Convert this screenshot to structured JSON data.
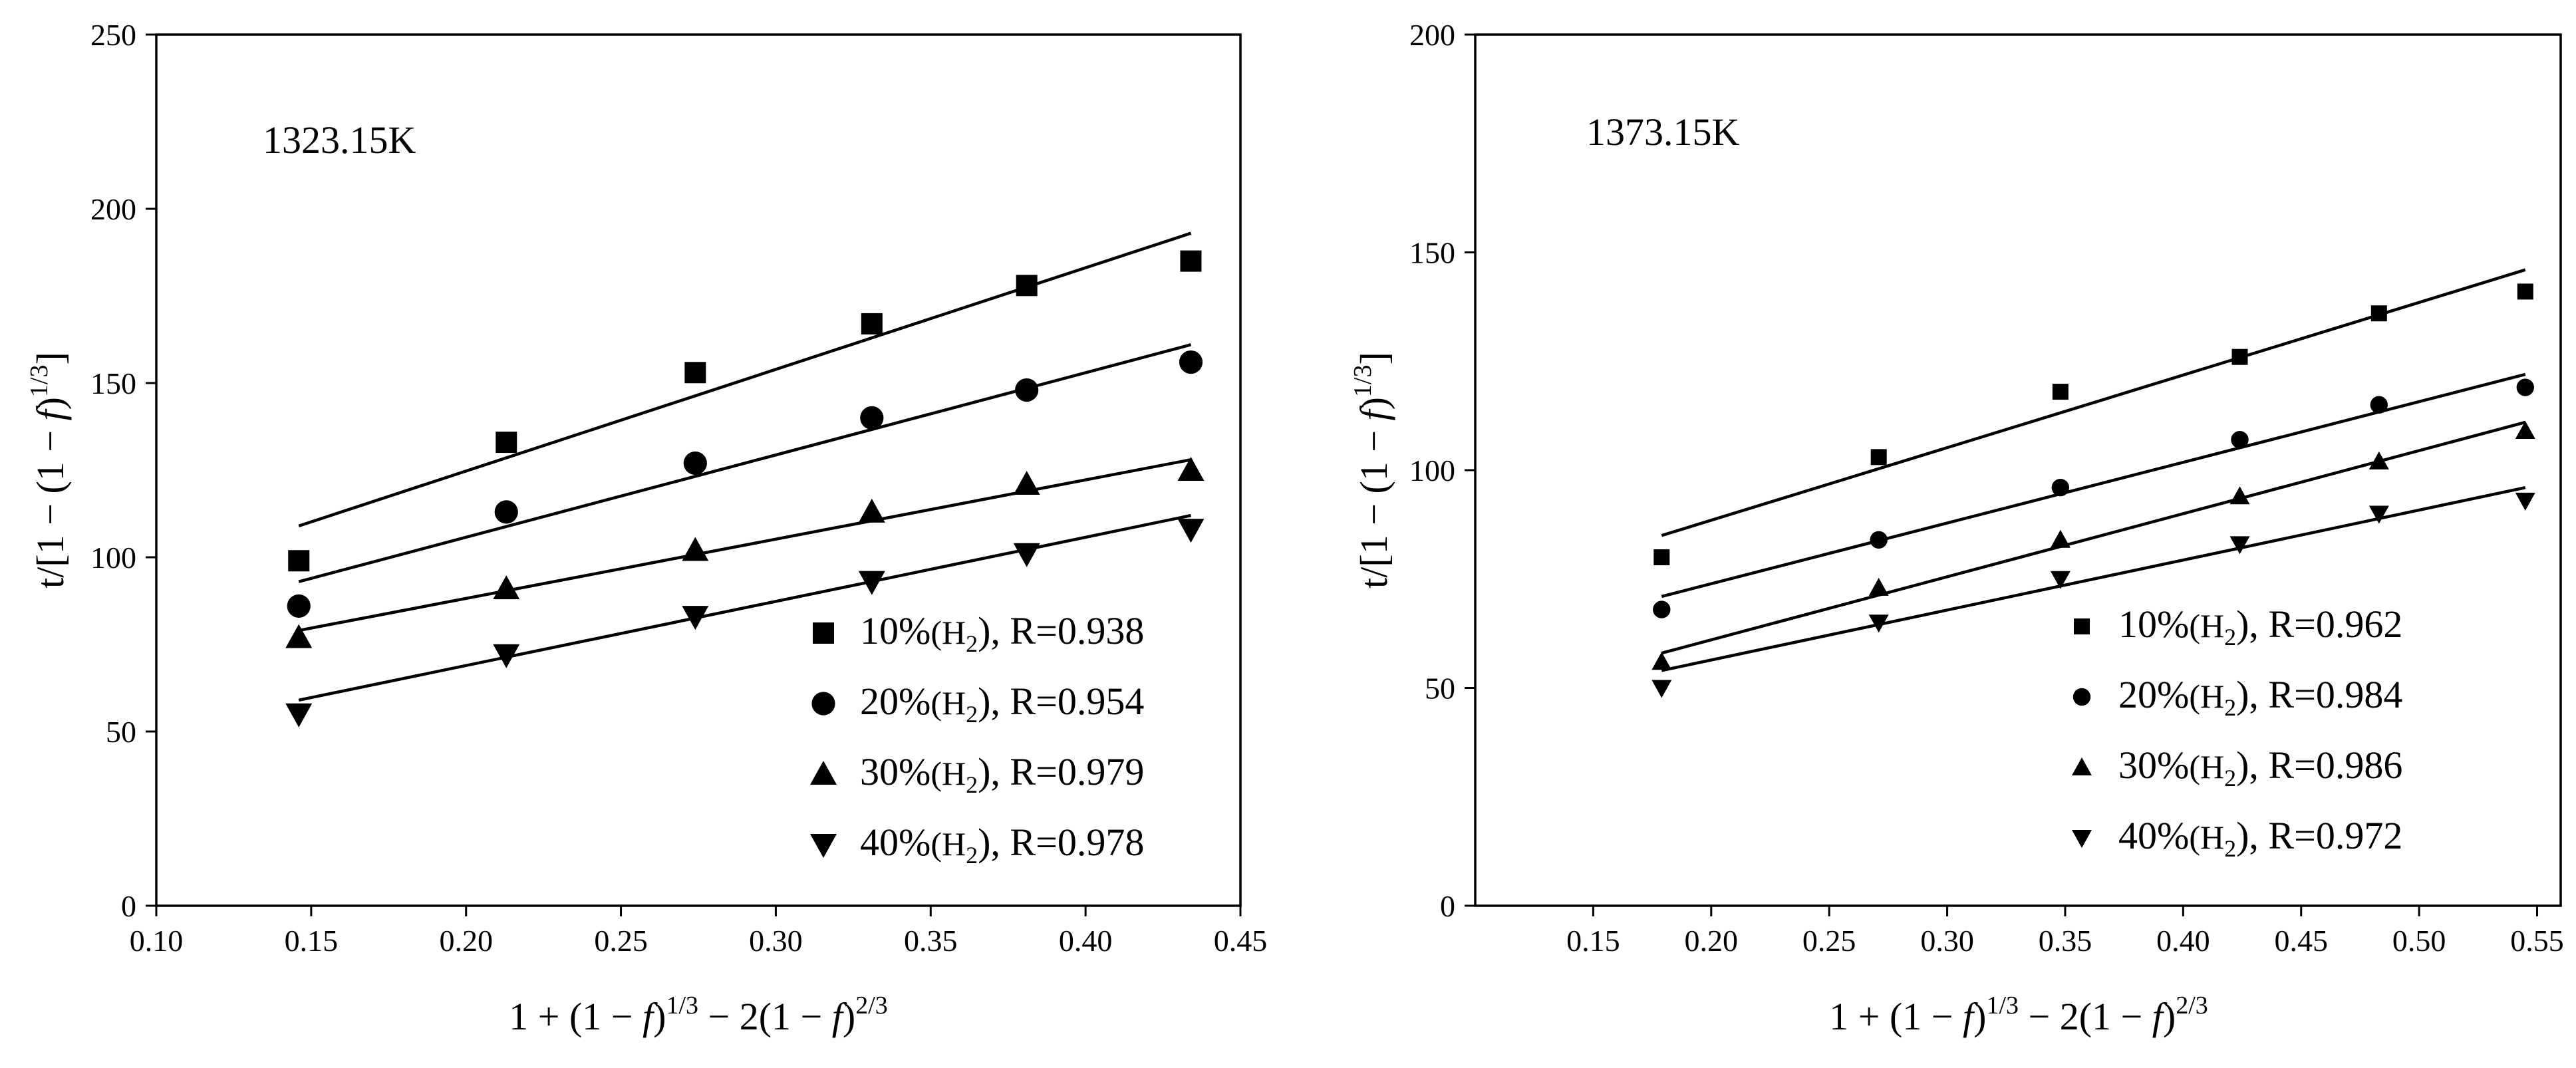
{
  "chart_data": [
    {
      "type": "scatter",
      "panel_label": "1323.15K",
      "xlabel": {
        "base": "1 + (1 − ",
        "f": "f",
        "exp1": "1/3",
        "mid": " − 2(1 − ",
        "exp2": "2/3"
      },
      "ylabel": {
        "base": "t/[1 − (1 − ",
        "f": "f",
        "exp": "1/3",
        "close": "]"
      },
      "xlim": [
        0.1,
        0.45
      ],
      "ylim": [
        0,
        250
      ],
      "xticks": [
        0.1,
        0.15,
        0.2,
        0.25,
        0.3,
        0.35,
        0.4,
        0.45
      ],
      "xtick_labels": [
        "0.10",
        "0.15",
        "0.20",
        "0.25",
        "0.30",
        "0.35",
        "0.40",
        "0.45"
      ],
      "yticks": [
        0,
        50,
        100,
        150,
        200,
        250
      ],
      "ytick_labels": [
        "0",
        "50",
        "100",
        "150",
        "200",
        "250"
      ],
      "legend_position": "bottom-right",
      "marker_size": "large",
      "series": [
        {
          "name": "10%",
          "pct": "10%",
          "r": "R=0.938",
          "marker": "square",
          "x": [
            0.146,
            0.213,
            0.274,
            0.331,
            0.381,
            0.434
          ],
          "y": [
            99,
            133,
            153,
            167,
            178,
            185
          ],
          "fit": {
            "x": [
              0.146,
              0.434
            ],
            "y": [
              109,
              193
            ]
          }
        },
        {
          "name": "20%",
          "pct": "20%",
          "r": "R=0.954",
          "marker": "circle",
          "x": [
            0.146,
            0.213,
            0.274,
            0.331,
            0.381,
            0.434
          ],
          "y": [
            86,
            113,
            127,
            140,
            148,
            156
          ],
          "fit": {
            "x": [
              0.146,
              0.434
            ],
            "y": [
              93,
              161
            ]
          }
        },
        {
          "name": "30%",
          "pct": "30%",
          "r": "R=0.979",
          "marker": "triangle-up",
          "x": [
            0.146,
            0.213,
            0.274,
            0.331,
            0.381,
            0.434
          ],
          "y": [
            77,
            91,
            102,
            113,
            121,
            125
          ],
          "fit": {
            "x": [
              0.146,
              0.434
            ],
            "y": [
              79,
              128
            ]
          }
        },
        {
          "name": "40%",
          "pct": "40%",
          "r": "R=0.978",
          "marker": "triangle-down",
          "x": [
            0.146,
            0.213,
            0.274,
            0.331,
            0.381,
            0.434
          ],
          "y": [
            55,
            72,
            83,
            93,
            101,
            108
          ],
          "fit": {
            "x": [
              0.146,
              0.434
            ],
            "y": [
              59,
              112
            ]
          }
        }
      ]
    },
    {
      "type": "scatter",
      "panel_label": "1373.15K",
      "xlabel": {
        "base": "1 + (1 − ",
        "f": "f",
        "exp1": "1/3",
        "mid": " − 2(1 − ",
        "exp2": "2/3"
      },
      "ylabel": {
        "base": "t/[1 − (1 − ",
        "f": "f",
        "exp": "1/3",
        "close": "]"
      },
      "xlim": [
        0.1,
        0.56
      ],
      "ylim": [
        0,
        200
      ],
      "xticks": [
        0.15,
        0.2,
        0.25,
        0.3,
        0.35,
        0.4,
        0.45,
        0.5,
        0.55
      ],
      "xtick_labels": [
        "0.15",
        "0.20",
        "0.25",
        "0.30",
        "0.35",
        "0.40",
        "0.45",
        "0.50",
        "0.55"
      ],
      "yticks": [
        0,
        50,
        100,
        150,
        200
      ],
      "ytick_labels": [
        "0",
        "50",
        "100",
        "150",
        "200"
      ],
      "legend_position": "bottom-right",
      "marker_size": "small",
      "series": [
        {
          "name": "10%",
          "pct": "10%",
          "r": "R=0.962",
          "marker": "square",
          "x": [
            0.179,
            0.271,
            0.348,
            0.424,
            0.483,
            0.545
          ],
          "y": [
            80,
            103,
            118,
            126,
            136,
            141
          ],
          "fit": {
            "x": [
              0.179,
              0.545
            ],
            "y": [
              85,
              146
            ]
          }
        },
        {
          "name": "20%",
          "pct": "20%",
          "r": "R=0.984",
          "marker": "circle",
          "x": [
            0.179,
            0.271,
            0.348,
            0.424,
            0.483,
            0.545
          ],
          "y": [
            68,
            84,
            96,
            107,
            115,
            119
          ],
          "fit": {
            "x": [
              0.179,
              0.545
            ],
            "y": [
              71,
              122
            ]
          }
        },
        {
          "name": "30%",
          "pct": "30%",
          "r": "R=0.986",
          "marker": "triangle-up",
          "x": [
            0.179,
            0.271,
            0.348,
            0.424,
            0.483,
            0.545
          ],
          "y": [
            56,
            73,
            84,
            94,
            102,
            109
          ],
          "fit": {
            "x": [
              0.179,
              0.545
            ],
            "y": [
              58,
              111
            ]
          }
        },
        {
          "name": "40%",
          "pct": "40%",
          "r": "R=0.972",
          "marker": "triangle-down",
          "x": [
            0.179,
            0.271,
            0.348,
            0.424,
            0.483,
            0.545
          ],
          "y": [
            50,
            65,
            75,
            83,
            90,
            93
          ],
          "fit": {
            "x": [
              0.179,
              0.545
            ],
            "y": [
              54,
              96
            ]
          }
        }
      ]
    }
  ],
  "legend_text": {
    "open": "(H",
    "sub": "2",
    "close": "), "
  }
}
